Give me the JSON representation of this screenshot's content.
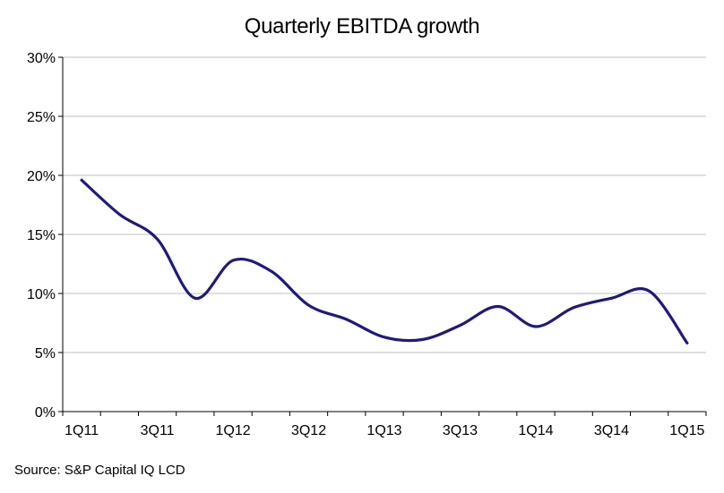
{
  "chart_data": {
    "type": "line",
    "title": "Quarterly EBITDA growth",
    "source": "Source: S&P Capital IQ LCD",
    "xlabel": "",
    "ylabel": "",
    "ylim": [
      0,
      30
    ],
    "y_ticks": [
      "0%",
      "5%",
      "10%",
      "15%",
      "20%",
      "25%",
      "30%"
    ],
    "x_tick_labels": [
      "1Q11",
      "3Q11",
      "1Q12",
      "3Q12",
      "1Q13",
      "3Q13",
      "1Q14",
      "3Q14",
      "1Q15"
    ],
    "categories": [
      "1Q11",
      "2Q11",
      "3Q11",
      "4Q11",
      "1Q12",
      "2Q12",
      "3Q12",
      "4Q12",
      "1Q13",
      "2Q13",
      "3Q13",
      "4Q13",
      "1Q14",
      "2Q14",
      "3Q14",
      "4Q14",
      "1Q15"
    ],
    "series": [
      {
        "values": [
          19.6,
          16.7,
          14.6,
          9.6,
          12.8,
          11.9,
          9.0,
          7.8,
          6.3,
          6.1,
          7.3,
          8.9,
          7.2,
          8.8,
          9.6,
          10.2,
          5.8
        ]
      }
    ],
    "grid": true,
    "legend": "none",
    "colors": {
      "line": "#1f1a7a",
      "grid": "#bfbfbf",
      "axis": "#000000"
    }
  }
}
